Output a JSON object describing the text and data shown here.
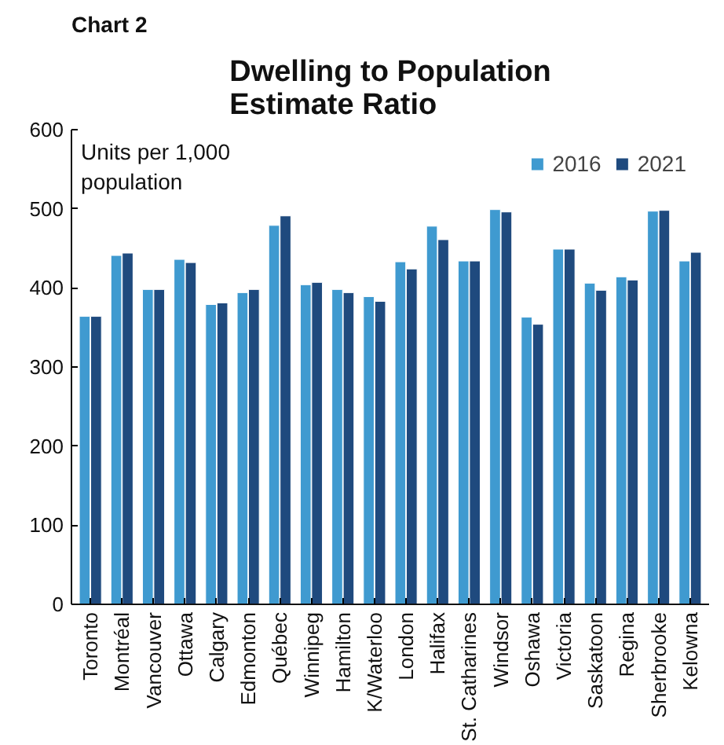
{
  "chart_data": {
    "type": "bar",
    "title": "Dwelling to Population Estimate Ratio",
    "ylabel": "Units per 1,000 population",
    "annotations": [
      "Chart 2"
    ],
    "categories": [
      "Toronto",
      "Montréal",
      "Vancouver",
      "Ottawa",
      "Calgary",
      "Edmonton",
      "Québec",
      "Winnipeg",
      "Hamilton",
      "K/Waterloo",
      "London",
      "Halifax",
      "St. Catharines",
      "Windsor",
      "Oshawa",
      "Victoria",
      "Saskatoon",
      "Regina",
      "Sherbrooke",
      "Kelowna"
    ],
    "series": [
      {
        "name": "2016",
        "color": "#3f9ad0",
        "values": [
          364,
          441,
          398,
          436,
          379,
          394,
          479,
          404,
          398,
          389,
          433,
          478,
          434,
          499,
          363,
          449,
          406,
          414,
          497,
          434
        ]
      },
      {
        "name": "2021",
        "color": "#1f4a7e",
        "values": [
          364,
          444,
          398,
          432,
          381,
          398,
          491,
          407,
          394,
          383,
          424,
          461,
          434,
          496,
          354,
          449,
          397,
          410,
          498,
          445
        ]
      }
    ],
    "ylim": [
      0,
      600
    ],
    "yticks": [
      0,
      100,
      200,
      300,
      400,
      500,
      600
    ],
    "grid": false,
    "legend": "top right"
  }
}
